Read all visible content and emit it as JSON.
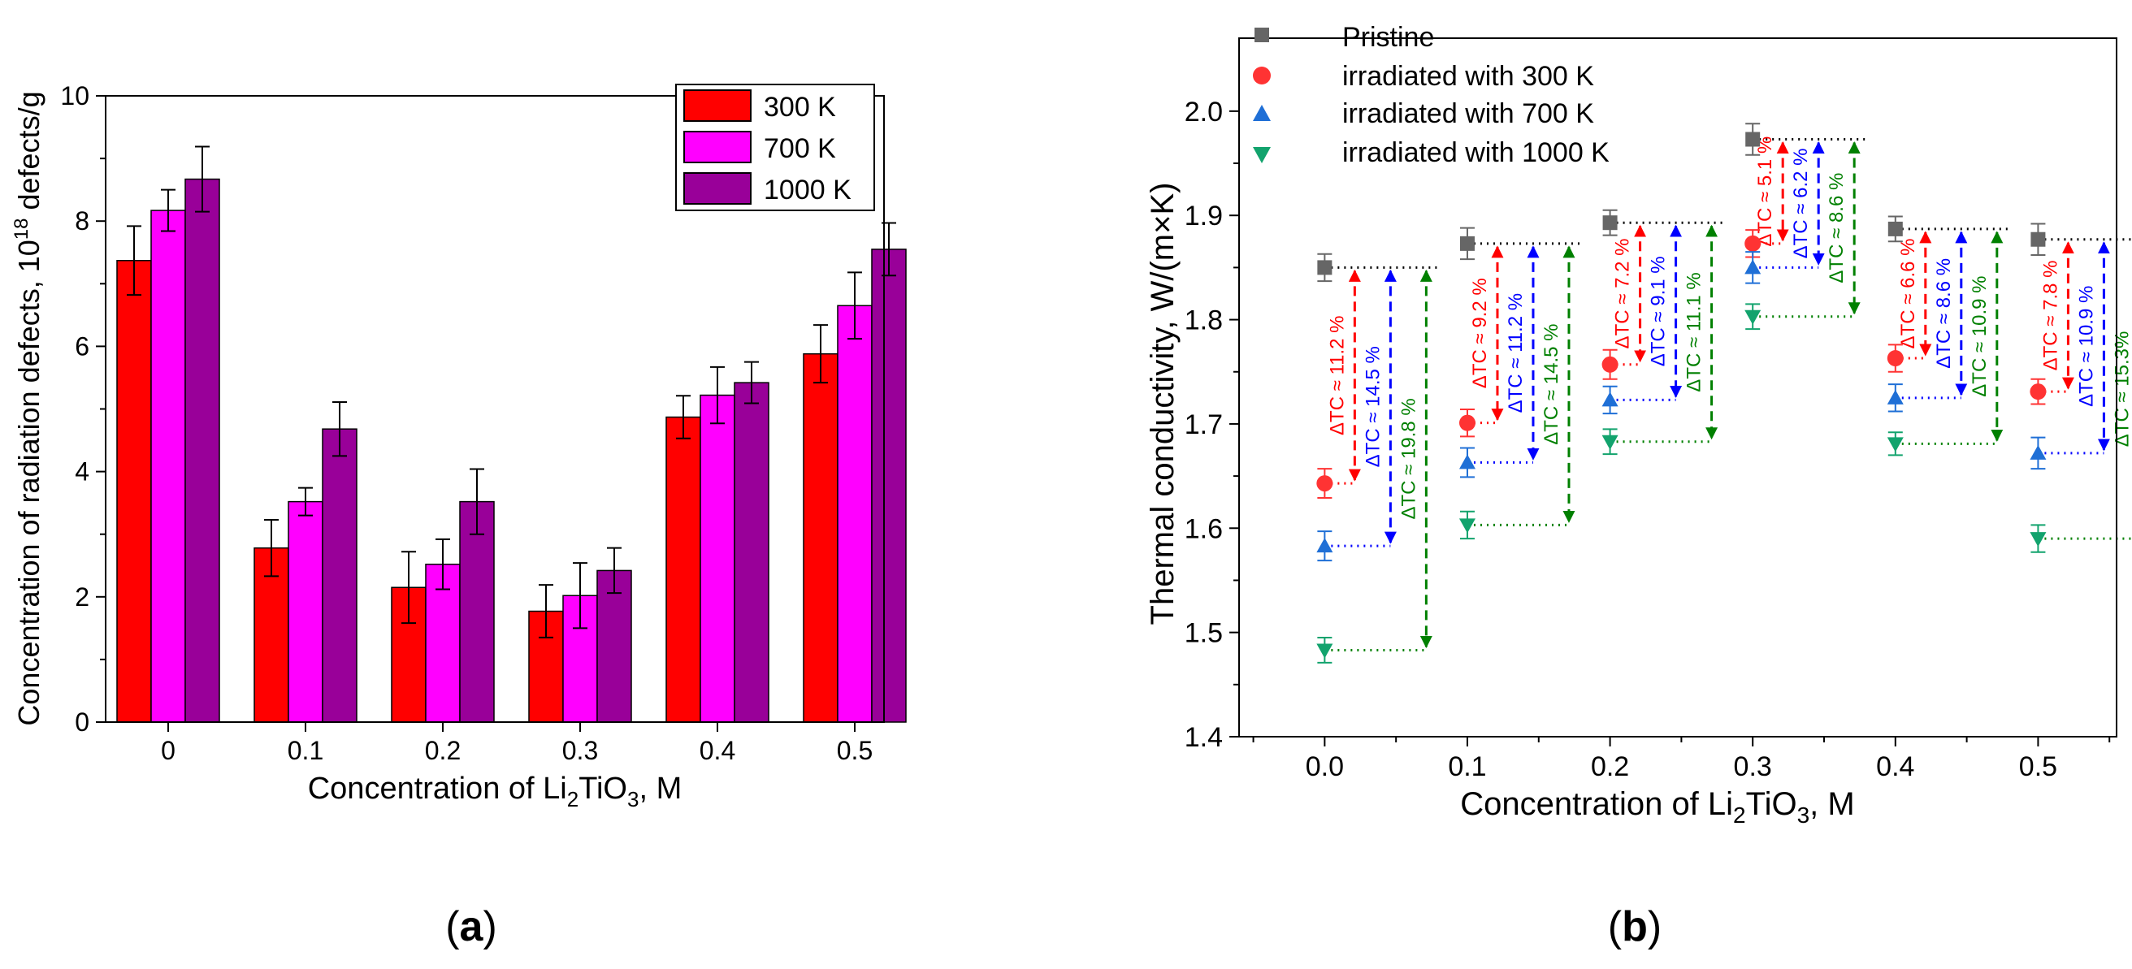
{
  "panel_a_caption": "a",
  "panel_b_caption": "b",
  "chart_data": [
    {
      "type": "bar",
      "ylabel": "Concentration of radiation defects, 10^18 defects/g",
      "ylabel_parts": [
        "Concentration of radiation defects, 10",
        "18",
        " defects/g"
      ],
      "xlabel": "Concentration of Li2TiO3, M",
      "xlabel_parts": [
        "Concentration of Li",
        "2",
        "TiO",
        "3",
        ", M"
      ],
      "categories": [
        "0",
        "0.1",
        "0.2",
        "0.3",
        "0.4",
        "0.5"
      ],
      "ylim": [
        0,
        10
      ],
      "yticks": [
        "0",
        "2",
        "4",
        "6",
        "8",
        "10"
      ],
      "legend_position": "top-right",
      "series": [
        {
          "name": "300 K",
          "color": "#ff0000",
          "values": [
            7.37,
            2.78,
            2.15,
            1.77,
            4.87,
            5.88
          ],
          "errors": [
            0.55,
            0.45,
            0.57,
            0.42,
            0.34,
            0.46
          ]
        },
        {
          "name": "700 K",
          "color": "#ff00ff",
          "values": [
            8.17,
            3.52,
            2.52,
            2.02,
            5.22,
            6.65
          ],
          "errors": [
            0.33,
            0.22,
            0.4,
            0.52,
            0.45,
            0.53
          ]
        },
        {
          "name": "1000 K",
          "color": "#990099",
          "values": [
            8.67,
            4.68,
            3.52,
            2.42,
            5.42,
            7.55
          ],
          "errors": [
            0.52,
            0.43,
            0.52,
            0.36,
            0.33,
            0.42
          ]
        }
      ]
    },
    {
      "type": "scatter",
      "ylabel": "Thermal conductivity, W/(m×K)",
      "xlabel": "Concentration of Li2TiO3, M",
      "xlabel_parts": [
        "Concentration of Li",
        "2",
        "TiO",
        "3",
        ", M"
      ],
      "x": [
        0.0,
        0.1,
        0.2,
        0.3,
        0.4,
        0.5
      ],
      "xticks": [
        "0.0",
        "0.1",
        "0.2",
        "0.3",
        "0.4",
        "0.5"
      ],
      "xlim": [
        -0.06,
        0.555
      ],
      "ylim": [
        1.4,
        2.07
      ],
      "yticks": [
        "1.4",
        "1.5",
        "1.6",
        "1.7",
        "1.8",
        "1.9",
        "2.0"
      ],
      "legend_position": "top-left",
      "series": [
        {
          "name": "Pristine",
          "color": "#666666",
          "marker": "square",
          "values": [
            1.85,
            1.873,
            1.893,
            1.973,
            1.887,
            1.877
          ],
          "errors": [
            0.013,
            0.015,
            0.012,
            0.015,
            0.012,
            0.015
          ]
        },
        {
          "name": "irradiated with 300 K",
          "color": "#ff3333",
          "marker": "circle",
          "values": [
            1.643,
            1.701,
            1.757,
            1.873,
            1.763,
            1.731
          ],
          "errors": [
            0.014,
            0.013,
            0.014,
            0.013,
            0.013,
            0.012
          ]
        },
        {
          "name": "irradiated with 700 K",
          "color": "#1f6fd6",
          "marker": "triangle-up",
          "values": [
            1.583,
            1.663,
            1.723,
            1.85,
            1.725,
            1.672
          ],
          "errors": [
            0.014,
            0.014,
            0.013,
            0.015,
            0.013,
            0.015
          ]
        },
        {
          "name": "irradiated with 1000 K",
          "color": "#12a36d",
          "marker": "triangle-down",
          "values": [
            1.483,
            1.603,
            1.683,
            1.803,
            1.681,
            1.59
          ],
          "errors": [
            0.012,
            0.013,
            0.012,
            0.012,
            0.011,
            0.013
          ]
        }
      ],
      "annotations": [
        [
          "ΔTC ≈ 11.2 %",
          "ΔTC ≈ 14.5 %",
          "ΔTC ≈ 19.8 %"
        ],
        [
          "ΔTC ≈ 9.2 %",
          "ΔTC ≈ 11.2 %",
          "ΔTC ≈ 14.5 %"
        ],
        [
          "ΔTC ≈ 7.2 %",
          "ΔTC ≈ 9.1 %",
          "ΔTC ≈ 11.1 %"
        ],
        [
          "ΔTC ≈ 5.1 %",
          "ΔTC ≈ 6.2 %",
          "ΔTC ≈ 8.6 %"
        ],
        [
          "ΔTC ≈ 6.6 %",
          "ΔTC ≈ 8.6 %",
          "ΔTC ≈ 10.9 %"
        ],
        [
          "ΔTC ≈ 7.8 %",
          "ΔTC ≈ 10.9 %",
          "ΔTC ≈ 15.3%"
        ]
      ]
    }
  ]
}
